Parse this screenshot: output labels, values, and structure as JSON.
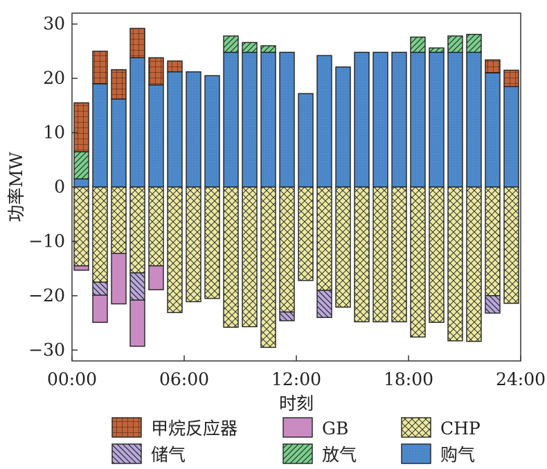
{
  "chart_data": {
    "type": "bar",
    "stacked": true,
    "xlabel": "时刻",
    "ylabel": "功率MW",
    "ylim": [
      -32,
      32
    ],
    "yticks": [
      -30,
      -20,
      -10,
      0,
      10,
      20,
      30
    ],
    "ytick_labels": [
      "−30",
      "−20",
      "−10",
      "0",
      "10",
      "20",
      "30"
    ],
    "xticks": [
      0,
      6,
      12,
      18,
      24
    ],
    "xtick_labels": [
      "00:00",
      "06:00",
      "12:00",
      "18:00",
      "24:00"
    ],
    "xlim": [
      0,
      24
    ],
    "hours": [
      1,
      2,
      3,
      4,
      5,
      6,
      7,
      8,
      9,
      10,
      11,
      12,
      13,
      14,
      15,
      16,
      17,
      18,
      19,
      20,
      21,
      22,
      23,
      24
    ],
    "legend_position": "bottom",
    "series": [
      {
        "key": "purchase",
        "name": "购气",
        "color": "#4a86c8",
        "pattern": "dots",
        "values": [
          1.5,
          19,
          16.2,
          23.8,
          18.8,
          21.2,
          21.2,
          20.5,
          24.8,
          24.8,
          24.8,
          24.8,
          17.2,
          24.2,
          22.1,
          24.8,
          24.8,
          24.8,
          24.8,
          24.8,
          24.8,
          24.8,
          21,
          18.5
        ]
      },
      {
        "key": "release",
        "name": "放气",
        "color": "#7dce8f",
        "pattern": "diag",
        "values": [
          5,
          0,
          0,
          0,
          0,
          0,
          0,
          0,
          3,
          1.8,
          1.2,
          0,
          0,
          0,
          0,
          0,
          0,
          0,
          2.8,
          0.8,
          3,
          3.3,
          0,
          0
        ]
      },
      {
        "key": "methane",
        "name": "甲烷反应器",
        "color": "#c0643a",
        "pattern": "grid",
        "values": [
          9,
          6,
          5.4,
          5.4,
          5,
          2,
          0,
          0,
          0,
          0,
          0,
          0,
          0,
          0,
          0,
          0,
          0,
          0,
          0,
          0,
          0,
          0,
          2.4,
          3
        ]
      },
      {
        "key": "chp",
        "name": "CHP",
        "color": "#ecea9e",
        "pattern": "cross",
        "values": [
          -14.5,
          -17.5,
          -12.2,
          -15.8,
          -14.5,
          -23.1,
          -21.1,
          -20.5,
          -25.8,
          -25.7,
          -29.5,
          -23,
          -17.2,
          -19,
          -22.1,
          -24.8,
          -24.8,
          -24.8,
          -27.6,
          -24.9,
          -28.3,
          -28.4,
          -20,
          -21.4
        ]
      },
      {
        "key": "storage",
        "name": "储气",
        "color": "#b9a9d6",
        "pattern": "anti",
        "values": [
          0,
          -2.4,
          0,
          -5,
          0,
          0,
          0,
          0,
          0,
          0,
          0,
          -1.6,
          0,
          -5,
          0,
          0,
          0,
          0,
          0,
          0,
          0,
          0,
          -3.2,
          0
        ]
      },
      {
        "key": "gb",
        "name": "GB",
        "color": "#c98bc2",
        "pattern": "none",
        "values": [
          -0.8,
          -5,
          -9.3,
          -8.5,
          -4.4,
          0,
          0,
          0,
          0,
          0,
          0,
          0,
          0,
          0,
          0,
          0,
          0,
          0,
          0,
          0,
          0,
          0,
          0,
          0
        ]
      }
    ]
  }
}
